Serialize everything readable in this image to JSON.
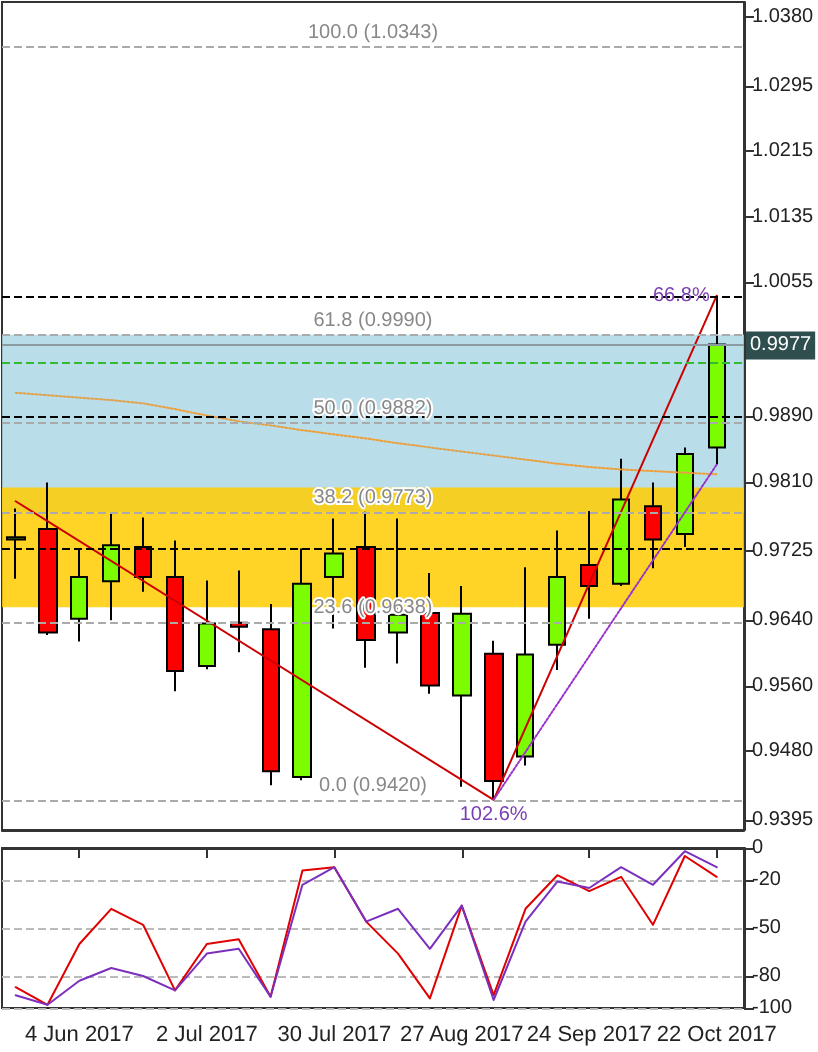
{
  "chart_data": [
    {
      "type": "candlestick",
      "x": [
        "2017-05-21",
        "2017-05-28",
        "2017-06-04",
        "2017-06-11",
        "2017-06-18",
        "2017-06-25",
        "2017-07-02",
        "2017-07-09",
        "2017-07-16",
        "2017-07-23",
        "2017-07-30",
        "2017-08-06",
        "2017-08-13",
        "2017-08-20",
        "2017-08-27",
        "2017-09-03",
        "2017-09-10",
        "2017-09-17",
        "2017-09-24",
        "2017-10-01",
        "2017-10-08",
        "2017-10-15",
        "2017-10-22"
      ],
      "ohlc": [
        [
          0.9739,
          0.9777,
          0.9691,
          0.9742
        ],
        [
          0.9752,
          0.9809,
          0.9622,
          0.9625
        ],
        [
          0.9642,
          0.9728,
          0.9614,
          0.9693
        ],
        [
          0.9688,
          0.9772,
          0.964,
          0.9732
        ],
        [
          0.973,
          0.9766,
          0.9675,
          0.9693
        ],
        [
          0.9693,
          0.9738,
          0.9553,
          0.9578
        ],
        [
          0.9584,
          0.9689,
          0.958,
          0.9636
        ],
        [
          0.9637,
          0.9701,
          0.9601,
          0.9632
        ],
        [
          0.9629,
          0.966,
          0.9438,
          0.9455
        ],
        [
          0.9448,
          0.9728,
          0.9444,
          0.9685
        ],
        [
          0.9693,
          0.9765,
          0.963,
          0.9722
        ],
        [
          0.973,
          0.9773,
          0.9582,
          0.9616
        ],
        [
          0.9625,
          0.9765,
          0.9587,
          0.9647
        ],
        [
          0.9649,
          0.9698,
          0.955,
          0.956
        ],
        [
          0.9548,
          0.9682,
          0.9436,
          0.9648
        ],
        [
          0.9599,
          0.9615,
          0.9422,
          0.9443
        ],
        [
          0.9473,
          0.9705,
          0.9462,
          0.9598
        ],
        [
          0.961,
          0.975,
          0.9579,
          0.9693
        ],
        [
          0.9708,
          0.9774,
          0.9642,
          0.9682
        ],
        [
          0.9685,
          0.9838,
          0.9682,
          0.9788
        ],
        [
          0.978,
          0.9809,
          0.9704,
          0.9739
        ],
        [
          0.9746,
          0.9852,
          0.973,
          0.9844
        ],
        [
          0.9852,
          1.0038,
          0.9831,
          0.9978
        ]
      ],
      "series": [
        {
          "type": "line",
          "color": "#e8a040",
          "line_style": "dotted",
          "values": [
            0.9919,
            0.9916,
            0.9913,
            0.991,
            0.9906,
            0.9899,
            0.9891,
            0.9884,
            0.9879,
            0.9873,
            0.9868,
            0.9863,
            0.9857,
            0.9852,
            0.9847,
            0.9842,
            0.9837,
            0.9832,
            0.9828,
            0.9825,
            0.9823,
            0.9821,
            0.9819
          ]
        },
        {
          "type": "line",
          "color": "#cc0000",
          "line_style": "solid",
          "x": [
            "2017-05-21",
            "2017-09-03",
            "2017-10-22"
          ],
          "values": [
            0.9786,
            0.942,
            1.0038
          ]
        },
        {
          "type": "line",
          "color": "#9933cc",
          "line_style": "dotted",
          "x": [
            "2017-09-03",
            "2017-10-22"
          ],
          "values": [
            0.942,
            0.9831
          ]
        }
      ],
      "xlim": [
        "2017-05-18",
        "2017-10-28"
      ],
      "ylim": [
        0.9383,
        1.0398
      ],
      "yticks": [
        {
          "value": 0.9395,
          "label": "0.9395"
        },
        {
          "value": 0.948,
          "label": "0.9480"
        },
        {
          "value": 0.956,
          "label": "0.9560"
        },
        {
          "value": 0.964,
          "label": "0.9640"
        },
        {
          "value": 0.9725,
          "label": "0.9725"
        },
        {
          "value": 0.981,
          "label": "0.9810"
        },
        {
          "value": 0.989,
          "label": "0.9890"
        },
        {
          "value": 1.0055,
          "label": "1.0055"
        },
        {
          "value": 1.0135,
          "label": "1.0135"
        },
        {
          "value": 1.0215,
          "label": "1.0215"
        },
        {
          "value": 1.0295,
          "label": "1.0295"
        },
        {
          "value": 1.038,
          "label": "1.0380"
        }
      ],
      "tick_labels": "y",
      "bands": [
        {
          "axis": "y",
          "from": 0.9773,
          "to": 0.999,
          "color": "#add8e6"
        },
        {
          "axis": "y",
          "from": 0.9656,
          "to": 0.9803,
          "color": "#ffcc00"
        }
      ],
      "ref_lines": [
        {
          "axis": "y",
          "value": 1.0343,
          "label": "100.0 (1.0343)",
          "color": "#aaaaaa",
          "line_style": "dashed"
        },
        {
          "axis": "y",
          "value": 0.999,
          "label": "61.8 (0.9990)",
          "color": "#aaaaaa",
          "line_style": "dashed"
        },
        {
          "axis": "y",
          "value": 0.9882,
          "label": "50.0 (0.9882)",
          "color": "#aaaaaa",
          "line_style": "dashed"
        },
        {
          "axis": "y",
          "value": 0.9773,
          "label": "38.2 (0.9773)",
          "color": "#aaaaaa",
          "line_style": "dashed"
        },
        {
          "axis": "y",
          "value": 0.9638,
          "label": "23.6 (0.9638)",
          "color": "#aaaaaa",
          "line_style": "dashed"
        },
        {
          "axis": "y",
          "value": 0.942,
          "label": "0.0 (0.9420)",
          "color": "#aaaaaa",
          "line_style": "dashed"
        },
        {
          "axis": "y",
          "value": 0.9977,
          "label": "0.9977",
          "color": "#8a9aa0",
          "line_style": "solid"
        },
        {
          "axis": "y",
          "value": 0.9957,
          "color": "#33bb33",
          "line_style": "dashed"
        },
        {
          "axis": "y",
          "value": 1.0038,
          "color": "#000000",
          "line_style": "dashed"
        },
        {
          "axis": "y",
          "value": 0.9891,
          "color": "#000000",
          "line_style": "dashed"
        },
        {
          "axis": "y",
          "value": 0.9729,
          "color": "#000000",
          "line_style": "dashed"
        }
      ],
      "annotations": [
        {
          "text": "66.8%",
          "x": "2017-10-22",
          "y": 1.0038
        },
        {
          "text": "102.6%",
          "x": "2017-09-03",
          "y": 0.9422
        }
      ]
    },
    {
      "type": "line",
      "x": [
        "2017-05-21",
        "2017-05-28",
        "2017-06-04",
        "2017-06-11",
        "2017-06-18",
        "2017-06-25",
        "2017-07-02",
        "2017-07-09",
        "2017-07-16",
        "2017-07-23",
        "2017-07-30",
        "2017-08-06",
        "2017-08-13",
        "2017-08-20",
        "2017-08-27",
        "2017-09-03",
        "2017-09-10",
        "2017-09-17",
        "2017-09-24",
        "2017-10-01",
        "2017-10-08",
        "2017-10-15",
        "2017-10-22"
      ],
      "series": [
        {
          "color": "#e00000",
          "values": [
            -87,
            -98,
            -60,
            -38,
            -48,
            -89,
            -60,
            -57,
            -93,
            -14,
            -12,
            -46,
            -66,
            -94,
            -36,
            -92,
            -38,
            -17,
            -27,
            -18,
            -48,
            -5,
            -18
          ]
        },
        {
          "color": "#7b2fbe",
          "values": [
            -92,
            -98,
            -83,
            -75,
            -80,
            -89,
            -66,
            -63,
            -93,
            -23,
            -12,
            -46,
            -38,
            -63,
            -36,
            -95,
            -46,
            -21,
            -25,
            -12,
            -23,
            -2,
            -12
          ]
        }
      ],
      "xlim": [
        "2017-05-18",
        "2017-10-28"
      ],
      "ylim": [
        -100,
        0
      ],
      "yticks": [
        0,
        -20,
        -50,
        -80,
        -100
      ],
      "xticks": [
        {
          "value": "2017-06-04",
          "label": "4 Jun 2017"
        },
        {
          "value": "2017-07-02",
          "label": "2 Jul 2017"
        },
        {
          "value": "2017-07-30",
          "label": "30 Jul 2017"
        },
        {
          "value": "2017-08-27",
          "label": "27 Aug 2017"
        },
        {
          "value": "2017-09-24",
          "label": "24 Sep 2017"
        },
        {
          "value": "2017-10-22",
          "label": "22 Oct 2017"
        }
      ],
      "grid": "y"
    }
  ]
}
